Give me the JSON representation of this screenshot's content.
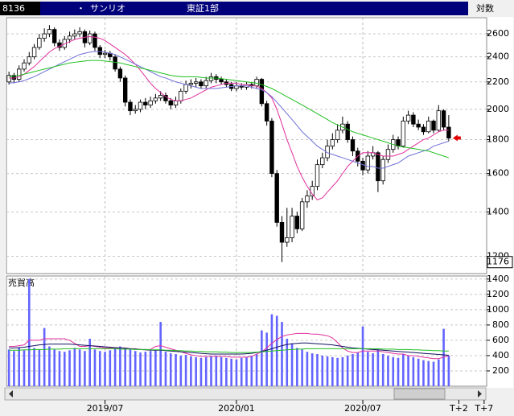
{
  "header": {
    "code": "8136",
    "bullet": "・",
    "name": "サンリオ",
    "market": "東証1部",
    "scale": "対数"
  },
  "chart_data": [
    {
      "type": "candlestick",
      "log_scale": true,
      "grid": true,
      "ylim": [
        1130,
        2750
      ],
      "yticks": [
        1200,
        1400,
        1600,
        1800,
        2000,
        2200,
        2400,
        2600
      ],
      "marker": 1176,
      "up_color": "#ffffff",
      "down_color": "#000000",
      "open": [
        2200,
        2250,
        2220,
        2300,
        2350,
        2400,
        2480,
        2560,
        2600,
        2640,
        2520,
        2480,
        2550,
        2580,
        2600,
        2620,
        2520,
        2600,
        2480,
        2420,
        2430,
        2400,
        2300,
        2230,
        2050,
        1990,
        2000,
        2050,
        2030,
        2060,
        2080,
        2100,
        2060,
        2030,
        2060,
        2130,
        2180,
        2190,
        2200,
        2170,
        2210,
        2240,
        2220,
        2200,
        2180,
        2150,
        2170,
        2160,
        2180,
        2170,
        2220,
        2040,
        1920,
        1600,
        1350,
        1260,
        1280,
        1380,
        1320,
        1450,
        1480,
        1530,
        1650,
        1690,
        1760,
        1800,
        1860,
        1900,
        1800,
        1730,
        1670,
        1620,
        1700,
        1720,
        1560,
        1680,
        1740,
        1800,
        1760,
        1920,
        1960,
        1900,
        1880,
        1850,
        1920,
        1860,
        1990,
        1880
      ],
      "high": [
        2280,
        2270,
        2330,
        2380,
        2440,
        2510,
        2600,
        2650,
        2680,
        2660,
        2550,
        2580,
        2620,
        2640,
        2660,
        2640,
        2630,
        2620,
        2500,
        2460,
        2450,
        2420,
        2320,
        2250,
        2070,
        2030,
        2070,
        2080,
        2090,
        2110,
        2130,
        2120,
        2080,
        2090,
        2150,
        2210,
        2220,
        2230,
        2220,
        2240,
        2270,
        2260,
        2240,
        2220,
        2200,
        2200,
        2190,
        2200,
        2200,
        2240,
        2230,
        2060,
        1940,
        1620,
        1380,
        1420,
        1420,
        1400,
        1470,
        1510,
        1560,
        1680,
        1720,
        1800,
        1840,
        1900,
        1950,
        1920,
        1820,
        1750,
        1690,
        1730,
        1760,
        1730,
        1700,
        1770,
        1830,
        1820,
        1950,
        1990,
        1980,
        1930,
        1900,
        1950,
        1930,
        2030,
        2000,
        1960
      ],
      "low": [
        2180,
        2190,
        2200,
        2280,
        2330,
        2380,
        2460,
        2530,
        2570,
        2490,
        2450,
        2460,
        2520,
        2550,
        2570,
        2480,
        2500,
        2450,
        2390,
        2390,
        2370,
        2280,
        2200,
        2020,
        1960,
        1970,
        1980,
        2000,
        2010,
        2040,
        2060,
        2040,
        2000,
        2010,
        2040,
        2110,
        2150,
        2160,
        2150,
        2150,
        2190,
        2190,
        2180,
        2160,
        2130,
        2130,
        2140,
        2140,
        2150,
        2150,
        2020,
        1890,
        1580,
        1330,
        1176,
        1240,
        1260,
        1300,
        1310,
        1420,
        1460,
        1510,
        1630,
        1670,
        1740,
        1780,
        1840,
        1780,
        1700,
        1640,
        1590,
        1600,
        1680,
        1500,
        1540,
        1660,
        1720,
        1740,
        1750,
        1900,
        1880,
        1860,
        1830,
        1840,
        1840,
        1850,
        1860,
        1790
      ],
      "close": [
        2250,
        2220,
        2300,
        2350,
        2400,
        2480,
        2560,
        2600,
        2640,
        2520,
        2480,
        2550,
        2580,
        2600,
        2620,
        2520,
        2600,
        2480,
        2420,
        2430,
        2400,
        2300,
        2230,
        2050,
        1990,
        2000,
        2050,
        2030,
        2060,
        2080,
        2100,
        2060,
        2030,
        2060,
        2130,
        2180,
        2190,
        2200,
        2170,
        2210,
        2240,
        2220,
        2200,
        2180,
        2150,
        2170,
        2160,
        2180,
        2170,
        2220,
        2040,
        1920,
        1600,
        1350,
        1260,
        1280,
        1380,
        1320,
        1450,
        1480,
        1530,
        1650,
        1690,
        1760,
        1800,
        1860,
        1900,
        1800,
        1730,
        1670,
        1620,
        1700,
        1720,
        1560,
        1680,
        1740,
        1800,
        1760,
        1920,
        1960,
        1900,
        1880,
        1850,
        1920,
        1860,
        1990,
        1880,
        1810
      ],
      "lines": [
        {
          "color": "#e0309c",
          "values": [
            2230,
            2230,
            2240,
            2260,
            2290,
            2320,
            2360,
            2400,
            2440,
            2470,
            2490,
            2510,
            2530,
            2550,
            2560,
            2570,
            2575,
            2570,
            2560,
            2540,
            2510,
            2480,
            2450,
            2420,
            2380,
            2340,
            2290,
            2240,
            2190,
            2150,
            2120,
            2090,
            2070,
            2060,
            2060,
            2070,
            2080,
            2100,
            2120,
            2140,
            2160,
            2170,
            2180,
            2190,
            2190,
            2190,
            2180,
            2180,
            2170,
            2170,
            2150,
            2120,
            2080,
            2000,
            1900,
            1800,
            1720,
            1640,
            1580,
            1530,
            1490,
            1460,
            1470,
            1500,
            1530,
            1560,
            1600,
            1640,
            1670,
            1700,
            1720,
            1720,
            1720,
            1710,
            1700,
            1700,
            1700,
            1710,
            1720,
            1740,
            1760,
            1780,
            1800,
            1810,
            1830,
            1850,
            1860,
            1860
          ]
        },
        {
          "color": "#7070d8",
          "values": [
            2190,
            2195,
            2200,
            2210,
            2225,
            2240,
            2260,
            2280,
            2300,
            2320,
            2340,
            2360,
            2380,
            2400,
            2420,
            2430,
            2440,
            2445,
            2445,
            2440,
            2430,
            2420,
            2400,
            2380,
            2360,
            2340,
            2320,
            2300,
            2280,
            2260,
            2240,
            2230,
            2215,
            2200,
            2190,
            2180,
            2170,
            2160,
            2150,
            2150,
            2150,
            2150,
            2155,
            2160,
            2165,
            2170,
            2170,
            2170,
            2160,
            2150,
            2140,
            2120,
            2090,
            2050,
            2010,
            1970,
            1930,
            1890,
            1850,
            1820,
            1790,
            1760,
            1740,
            1720,
            1710,
            1700,
            1690,
            1680,
            1670,
            1660,
            1650,
            1640,
            1640,
            1630,
            1630,
            1640,
            1650,
            1660,
            1680,
            1700,
            1710,
            1720,
            1730,
            1740,
            1760,
            1770,
            1780,
            1790
          ]
        },
        {
          "color": "#20c020",
          "values": [
            2240,
            2245,
            2250,
            2260,
            2270,
            2280,
            2290,
            2300,
            2310,
            2320,
            2330,
            2340,
            2350,
            2355,
            2360,
            2365,
            2370,
            2370,
            2370,
            2365,
            2360,
            2355,
            2350,
            2340,
            2330,
            2320,
            2310,
            2300,
            2290,
            2280,
            2270,
            2260,
            2250,
            2245,
            2240,
            2240,
            2240,
            2240,
            2235,
            2230,
            2230,
            2230,
            2225,
            2220,
            2215,
            2210,
            2205,
            2200,
            2195,
            2190,
            2180,
            2165,
            2150,
            2130,
            2110,
            2090,
            2070,
            2050,
            2030,
            2010,
            1990,
            1970,
            1950,
            1930,
            1910,
            1895,
            1880,
            1865,
            1850,
            1840,
            1830,
            1820,
            1810,
            1800,
            1790,
            1780,
            1770,
            1760,
            1755,
            1750,
            1745,
            1740,
            1735,
            1730,
            1720,
            1710,
            1700,
            1690
          ]
        }
      ]
    },
    {
      "type": "bar",
      "title": "売買高",
      "log_scale": false,
      "grid": true,
      "ylim": [
        0,
        1440
      ],
      "yticks": [
        200,
        400,
        600,
        800,
        1000,
        1200,
        1400
      ],
      "color": "#6464ff",
      "categories": [
        null,
        null,
        null,
        null,
        null,
        null,
        null,
        null,
        null,
        null,
        null,
        null,
        null,
        null,
        null,
        null,
        null,
        null,
        null,
        "2019/07",
        null,
        null,
        null,
        null,
        null,
        null,
        null,
        null,
        null,
        null,
        null,
        null,
        null,
        null,
        null,
        null,
        null,
        null,
        null,
        null,
        null,
        null,
        null,
        null,
        null,
        "2020/01",
        null,
        null,
        null,
        null,
        null,
        null,
        null,
        null,
        null,
        null,
        null,
        null,
        null,
        null,
        null,
        null,
        null,
        null,
        null,
        null,
        null,
        null,
        null,
        null,
        "2020/07",
        null,
        null,
        null,
        null,
        null,
        null,
        null,
        null,
        null,
        null,
        null,
        null,
        null,
        null,
        null,
        null,
        null,
        null,
        "T+2",
        null,
        null,
        null,
        null,
        "T+7"
      ],
      "values": [
        480,
        460,
        500,
        470,
        1400,
        500,
        480,
        760,
        520,
        480,
        460,
        450,
        470,
        500,
        480,
        460,
        620,
        480,
        460,
        450,
        470,
        490,
        520,
        500,
        480,
        460,
        440,
        450,
        460,
        470,
        840,
        450,
        430,
        420,
        400,
        410,
        390,
        380,
        370,
        380,
        390,
        400,
        380,
        370,
        360,
        350,
        370,
        380,
        400,
        420,
        730,
        700,
        940,
        920,
        840,
        620,
        560,
        500,
        480,
        450,
        430,
        420,
        400,
        390,
        380,
        370,
        380,
        400,
        420,
        440,
        780,
        450,
        430,
        480,
        420,
        400,
        380,
        370,
        420,
        400,
        380,
        360,
        340,
        330,
        320,
        350,
        750,
        400,
        null,
        null,
        null,
        null,
        null,
        null,
        null
      ],
      "lines": [
        {
          "color": "#e0309c",
          "values": [
            520,
            520,
            530,
            540,
            600,
            600,
            600,
            620,
            620,
            620,
            620,
            620,
            600,
            560,
            520,
            520,
            530,
            520,
            510,
            500,
            500,
            500,
            500,
            500,
            490,
            490,
            480,
            480,
            480,
            520,
            530,
            510,
            490,
            470,
            450,
            430,
            410,
            400,
            390,
            390,
            390,
            390,
            390,
            390,
            380,
            380,
            380,
            380,
            390,
            420,
            450,
            500,
            560,
            610,
            650,
            670,
            680,
            690,
            690,
            690,
            680,
            680,
            670,
            660,
            630,
            570,
            500,
            460,
            440,
            440,
            460,
            460,
            460,
            460,
            450,
            440,
            430,
            420,
            420,
            400,
            400,
            390,
            380,
            370,
            360,
            360,
            380,
            400,
            null,
            null,
            null,
            null,
            null,
            null,
            null
          ]
        },
        {
          "color": "#101060",
          "values": [
            500,
            500,
            505,
            510,
            520,
            530,
            540,
            545,
            550,
            550,
            550,
            550,
            550,
            545,
            540,
            535,
            530,
            525,
            520,
            515,
            510,
            505,
            500,
            495,
            490,
            485,
            480,
            475,
            470,
            470,
            470,
            465,
            460,
            455,
            450,
            445,
            440,
            435,
            430,
            425,
            420,
            420,
            420,
            420,
            420,
            420,
            420,
            425,
            430,
            440,
            455,
            470,
            490,
            510,
            530,
            545,
            555,
            560,
            565,
            565,
            560,
            555,
            550,
            545,
            540,
            530,
            520,
            510,
            500,
            495,
            490,
            485,
            480,
            475,
            470,
            465,
            460,
            455,
            450,
            445,
            440,
            435,
            430,
            425,
            420,
            415,
            410,
            405,
            null,
            null,
            null,
            null,
            null,
            null,
            null
          ]
        },
        {
          "color": "#20c020",
          "values": [
            470,
            470,
            470,
            475,
            475,
            480,
            480,
            480,
            485,
            485,
            485,
            490,
            490,
            490,
            490,
            490,
            490,
            490,
            490,
            490,
            490,
            490,
            485,
            485,
            485,
            480,
            480,
            480,
            475,
            475,
            475,
            470,
            470,
            465,
            465,
            460,
            460,
            455,
            455,
            450,
            450,
            450,
            445,
            445,
            440,
            440,
            440,
            440,
            440,
            445,
            450,
            455,
            460,
            465,
            470,
            475,
            480,
            485,
            485,
            490,
            490,
            490,
            490,
            490,
            490,
            490,
            490,
            490,
            490,
            490,
            490,
            490,
            490,
            490,
            485,
            485,
            485,
            480,
            480,
            480,
            475,
            475,
            470,
            470,
            465,
            465,
            460,
            460,
            null,
            null,
            null,
            null,
            null,
            null,
            null
          ]
        }
      ]
    }
  ]
}
